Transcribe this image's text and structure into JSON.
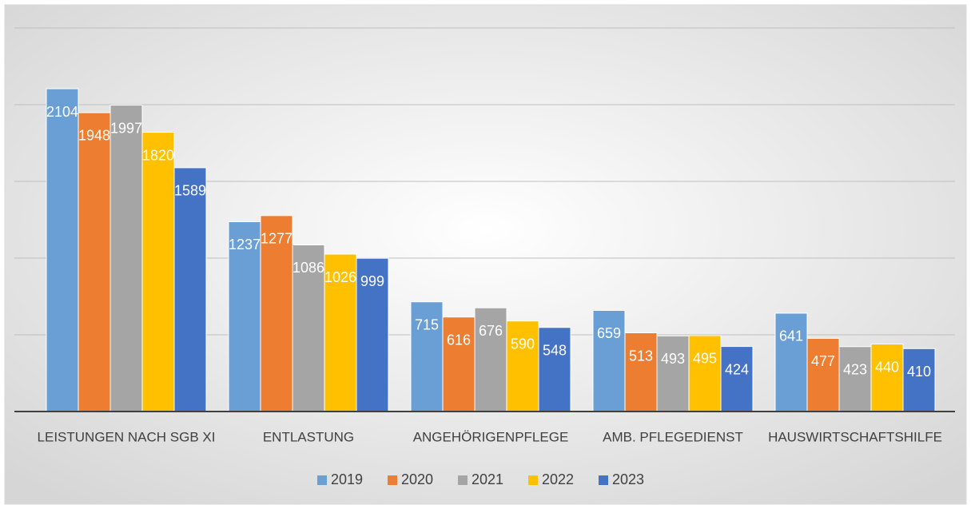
{
  "chart_data": {
    "type": "bar",
    "categories": [
      "LEISTUNGEN NACH SGB XI",
      "ENTLASTUNG",
      "ANGEHÖRIGENPFLEGE",
      "AMB. PFLEGEDIENST",
      "HAUSWIRTSCHAFTSHILFE"
    ],
    "series": [
      {
        "name": "2019",
        "color": "#6a9fd6",
        "values": [
          2104,
          1237,
          715,
          659,
          641
        ]
      },
      {
        "name": "2020",
        "color": "#ed7d31",
        "values": [
          1948,
          1277,
          616,
          513,
          477
        ]
      },
      {
        "name": "2021",
        "color": "#a5a5a5",
        "values": [
          1997,
          1086,
          676,
          493,
          423
        ]
      },
      {
        "name": "2022",
        "color": "#ffc000",
        "values": [
          1820,
          1026,
          590,
          495,
          440
        ]
      },
      {
        "name": "2023",
        "color": "#4472c4",
        "values": [
          1589,
          999,
          548,
          424,
          410
        ]
      }
    ],
    "ylim": [
      0,
      2500
    ],
    "yticks": [
      0,
      500,
      1000,
      1500,
      2000,
      2500
    ],
    "grid": true,
    "legend": "bottom"
  }
}
